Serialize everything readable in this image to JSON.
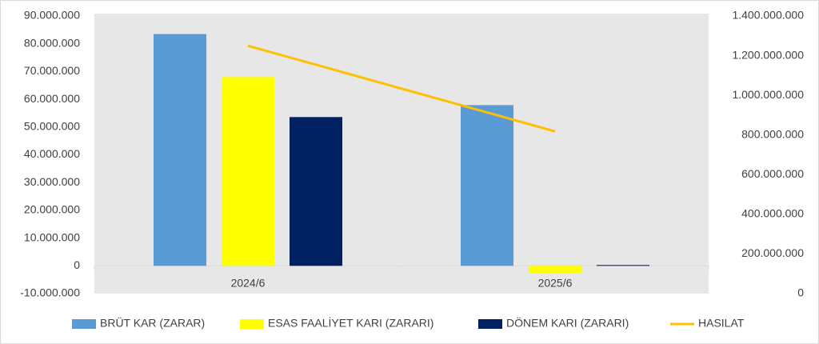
{
  "chart_data": {
    "type": "bar",
    "categories": [
      "2024/6",
      "2025/6"
    ],
    "series": [
      {
        "name": "BRÜT KAR (ZARAR)",
        "color": "#5b9bd5",
        "values": [
          83500000,
          57900000
        ]
      },
      {
        "name": "ESAS FAALİYET KARI (ZARARI)",
        "color": "#ffff00",
        "values": [
          68000000,
          -2500000
        ]
      },
      {
        "name": "DÖNEM KARI (ZARARI)",
        "color": "#002060",
        "values": [
          53600000,
          300000
        ]
      },
      {
        "name": "HASILAT",
        "color": "#ffc000",
        "type": "line",
        "axis": "y2",
        "values": [
          1250000000,
          818000000
        ]
      }
    ],
    "ylim": [
      -10000000,
      90000000
    ],
    "yticks": [
      {
        "value": -10000000,
        "label": "-10.000.000"
      },
      0,
      {
        "value": 10000000,
        "label": "10.000.000"
      },
      {
        "value": 20000000,
        "label": "20.000.000"
      },
      {
        "value": 30000000,
        "label": "30.000.000"
      },
      {
        "value": 40000000,
        "label": "40.000.000"
      },
      {
        "value": 50000000,
        "label": "50.000.000"
      },
      {
        "value": 60000000,
        "label": "60.000.000"
      },
      {
        "value": 70000000,
        "label": "70.000.000"
      },
      {
        "value": 80000000,
        "label": "80.000.000"
      },
      {
        "value": 90000000,
        "label": "90.000.000"
      }
    ],
    "y2lim": [
      0,
      1400000000
    ],
    "y2ticks": [
      0,
      {
        "value": 200000000,
        "label": "200.000.000"
      },
      {
        "value": 400000000,
        "label": "400.000.000"
      },
      {
        "value": 600000000,
        "label": "600.000.000"
      },
      {
        "value": 800000000,
        "label": "800.000.000"
      },
      {
        "value": 1000000000,
        "label": "1.000.000.000"
      },
      {
        "value": 1200000000,
        "label": "1.200.000.000"
      },
      {
        "value": 1400000000,
        "label": "1.400.000.000"
      }
    ],
    "legend": "bottom"
  }
}
